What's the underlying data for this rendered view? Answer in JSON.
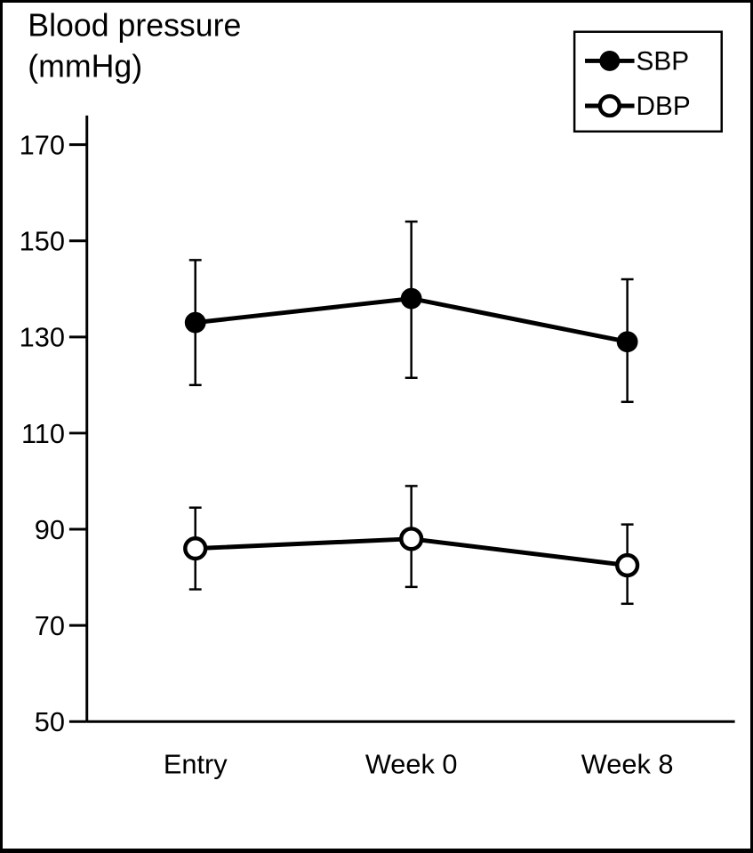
{
  "header": {
    "title_line1": "Blood pressure",
    "title_line2": "(mmHg)"
  },
  "chart_data": {
    "type": "line",
    "title": "Blood pressure (mmHg)",
    "categories": [
      "Entry",
      "Week 0",
      "Week 8"
    ],
    "series": [
      {
        "name": "SBP",
        "marker": "filled-circle",
        "color": "#000000",
        "values": [
          133,
          138,
          129
        ],
        "error_low": [
          120,
          121.5,
          116.5
        ],
        "error_high": [
          146,
          154,
          142
        ]
      },
      {
        "name": "DBP",
        "marker": "open-circle",
        "color": "#000000",
        "values": [
          86,
          88,
          82.5
        ],
        "error_low": [
          77.5,
          78,
          74.5
        ],
        "error_high": [
          94.5,
          99,
          91
        ]
      }
    ],
    "error_bars": true,
    "ylabel": "Blood pressure (mmHg)",
    "xlabel": "",
    "yticks": [
      50,
      70,
      90,
      110,
      130,
      150,
      170
    ],
    "ylim": [
      50,
      176
    ],
    "grid": false,
    "legend_position": "top-right",
    "colors": {
      "foreground": "#000000",
      "background": "#ffffff"
    }
  }
}
